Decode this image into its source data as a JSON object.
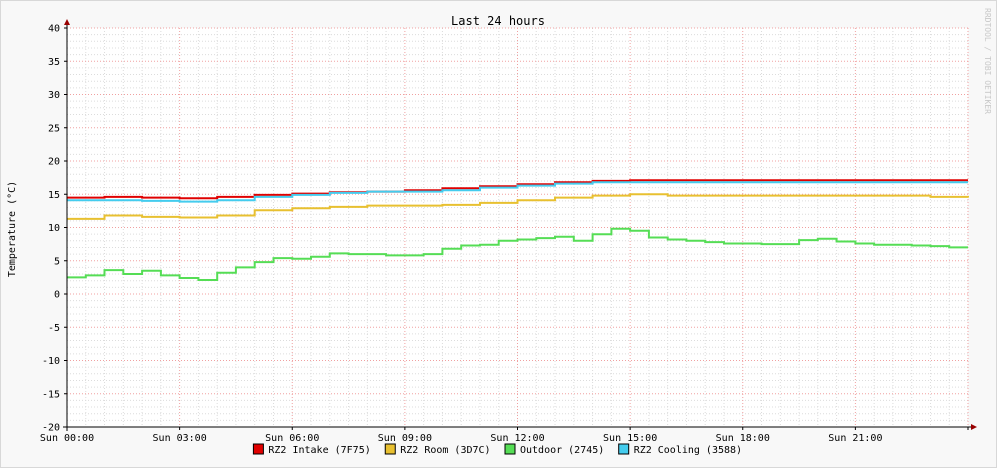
{
  "chart_data": {
    "type": "line",
    "title": "Last 24 hours",
    "ylabel": "Temperature (°C)",
    "watermark": "RRDTOOL / TOBI OETIKER",
    "ylim": [
      -20,
      40
    ],
    "xlim": [
      0,
      24
    ],
    "yticks": [
      "40",
      "35",
      "30",
      "25",
      "20",
      "15",
      "10",
      "5",
      "0",
      "-5",
      "-10",
      "-15",
      "-20"
    ],
    "xticks": [
      "Sun 00:00",
      "Sun 03:00",
      "Sun 06:00",
      "Sun 09:00",
      "Sun 12:00",
      "Sun 15:00",
      "Sun 18:00",
      "Sun 21:00"
    ],
    "legend_position": "bottom",
    "grid": true,
    "series": [
      {
        "name": "RZ2 Intake (7F75)",
        "color": "#e00000",
        "x": [
          0,
          1,
          2,
          3,
          4,
          5,
          6,
          7,
          8,
          9,
          10,
          11,
          12,
          13,
          14,
          15,
          16,
          17,
          18,
          19,
          20,
          21,
          22,
          23,
          24
        ],
        "y": [
          14.5,
          14.6,
          14.5,
          14.4,
          14.6,
          14.9,
          15.1,
          15.3,
          15.4,
          15.6,
          15.9,
          16.2,
          16.5,
          16.8,
          17.0,
          17.1,
          17.1,
          17.1,
          17.1,
          17.1,
          17.1,
          17.1,
          17.1,
          17.1,
          17.1
        ]
      },
      {
        "name": "RZ2 Room (3D7C)",
        "color": "#e8c030",
        "x": [
          0,
          1,
          2,
          3,
          4,
          5,
          6,
          7,
          8,
          9,
          10,
          11,
          12,
          13,
          14,
          15,
          16,
          17,
          18,
          19,
          20,
          21,
          22,
          23,
          24
        ],
        "y": [
          11.3,
          11.8,
          11.6,
          11.5,
          11.8,
          12.6,
          12.9,
          13.1,
          13.3,
          13.3,
          13.4,
          13.7,
          14.1,
          14.5,
          14.8,
          15.0,
          14.8,
          14.8,
          14.8,
          14.8,
          14.8,
          14.8,
          14.8,
          14.6,
          14.5
        ]
      },
      {
        "name": "Outdoor (2745)",
        "color": "#55dd55",
        "x": [
          0,
          0.5,
          1,
          1.5,
          2,
          2.5,
          3,
          3.5,
          4,
          4.5,
          5,
          5.5,
          6,
          6.5,
          7,
          7.5,
          8,
          8.5,
          9,
          9.5,
          10,
          10.5,
          11,
          11.5,
          12,
          12.5,
          13,
          13.5,
          14,
          14.5,
          15,
          15.5,
          16,
          16.5,
          17,
          17.5,
          18,
          18.5,
          19,
          19.5,
          20,
          20.5,
          21,
          21.5,
          22,
          22.5,
          23,
          23.5,
          24
        ],
        "y": [
          2.5,
          2.8,
          3.6,
          3.0,
          3.5,
          2.8,
          2.4,
          2.1,
          3.2,
          4.0,
          4.8,
          5.4,
          5.3,
          5.6,
          6.1,
          6.0,
          6.0,
          5.8,
          5.8,
          6.0,
          6.8,
          7.3,
          7.4,
          8.0,
          8.2,
          8.4,
          8.6,
          8.0,
          9.0,
          9.8,
          9.5,
          8.5,
          8.2,
          8.0,
          7.8,
          7.6,
          7.6,
          7.5,
          7.5,
          8.1,
          8.3,
          7.9,
          7.6,
          7.4,
          7.4,
          7.3,
          7.2,
          7.0,
          7.0
        ]
      },
      {
        "name": "RZ2 Cooling (3588)",
        "color": "#44ccee",
        "x": [
          0,
          1,
          2,
          3,
          4,
          5,
          6,
          7,
          8,
          9,
          10,
          11,
          12,
          13,
          14,
          15,
          16,
          17,
          18,
          19,
          20,
          21,
          22,
          23,
          24
        ],
        "y": [
          14.1,
          14.1,
          14.0,
          13.9,
          14.1,
          14.6,
          14.9,
          15.2,
          15.4,
          15.4,
          15.6,
          16.0,
          16.3,
          16.6,
          16.8,
          16.8,
          16.8,
          16.8,
          16.8,
          16.8,
          16.8,
          16.8,
          16.8,
          16.8,
          16.8
        ]
      }
    ]
  }
}
